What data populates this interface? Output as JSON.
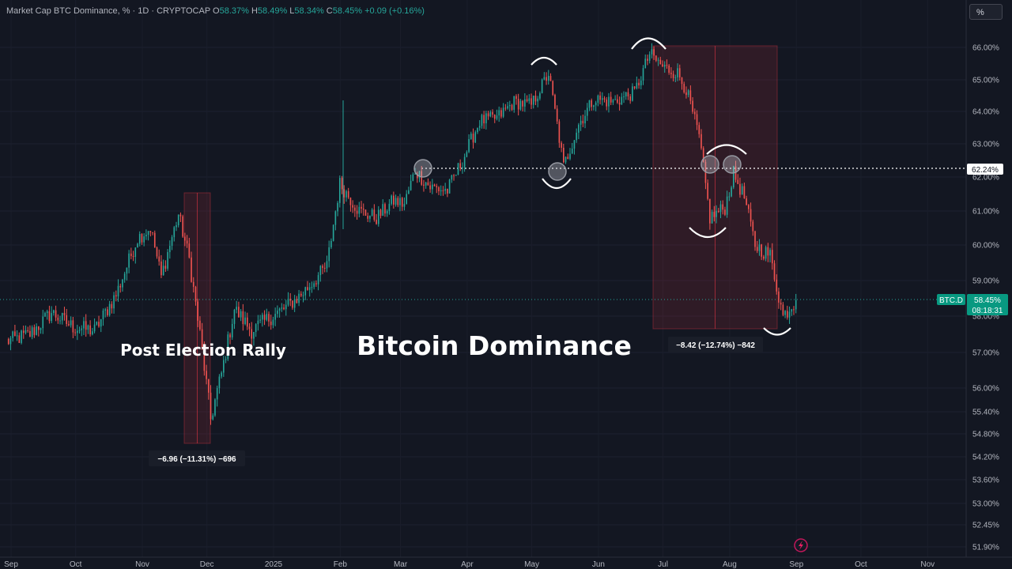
{
  "header": {
    "title": "Market Cap BTC Dominance, % · 1D · CRYPTOCAP",
    "o_label": "O",
    "o_value": "58.37%",
    "h_label": "H",
    "h_value": "58.49%",
    "l_label": "L",
    "l_value": "58.34%",
    "c_label": "C",
    "c_value": "58.45%",
    "change": "+0.09 (+0.16%)"
  },
  "scale_button": "%",
  "colors": {
    "up": "#26a69a",
    "down": "#ef5350",
    "bg": "#131722",
    "accent": "#089981"
  },
  "price_tag": {
    "symbol": "BTC.D",
    "value": "58.45%",
    "timer": "08:18:31"
  },
  "level_tag": "62.24%",
  "annotations": {
    "main_title": "Bitcoin Dominance",
    "left_title": "Post Election Rally",
    "left_measure": "−6.96 (−11.31%) −696",
    "right_measure": "−8.42 (−12.74%) −842"
  },
  "chart_data": {
    "type": "candlestick",
    "title": "Bitcoin Dominance",
    "y_ticks": [
      "66.00%",
      "65.00%",
      "64.00%",
      "63.00%",
      "62.00%",
      "61.00%",
      "60.00%",
      "59.00%",
      "58.00%",
      "57.00%",
      "56.00%",
      "55.40%",
      "54.80%",
      "54.20%",
      "53.60%",
      "53.00%",
      "52.45%",
      "51.90%"
    ],
    "x_ticks": [
      "Sep",
      "Oct",
      "Nov",
      "Dec",
      "2025",
      "Feb",
      "Mar",
      "Apr",
      "May",
      "Jun",
      "Jul",
      "Aug",
      "Sep",
      "Oct",
      "Nov"
    ],
    "horizontal_level": 62.24,
    "last_close": 58.45,
    "path_points": [
      [
        "2024-09-01",
        57.3
      ],
      [
        "2024-09-12",
        57.5
      ],
      [
        "2024-09-22",
        58.1
      ],
      [
        "2024-10-02",
        57.7
      ],
      [
        "2024-10-12",
        57.6
      ],
      [
        "2024-10-22",
        58.6
      ],
      [
        "2024-11-01",
        60.2
      ],
      [
        "2024-11-07",
        60.5
      ],
      [
        "2024-11-12",
        59.1
      ],
      [
        "2024-11-20",
        60.9
      ],
      [
        "2024-11-25",
        59.6
      ],
      [
        "2024-11-30",
        57.5
      ],
      [
        "2024-12-05",
        55.2
      ],
      [
        "2024-12-10",
        56.4
      ],
      [
        "2024-12-16",
        58.2
      ],
      [
        "2024-12-24",
        57.6
      ],
      [
        "2024-12-31",
        57.9
      ],
      [
        "2025-01-08",
        58.2
      ],
      [
        "2025-01-16",
        58.6
      ],
      [
        "2025-01-28",
        59.4
      ],
      [
        "2025-02-03",
        61.8
      ],
      [
        "2025-02-12",
        61.0
      ],
      [
        "2025-02-20",
        60.8
      ],
      [
        "2025-02-28",
        61.3
      ],
      [
        "2025-03-05",
        61.2
      ],
      [
        "2025-03-10",
        62.2
      ],
      [
        "2025-03-17",
        61.7
      ],
      [
        "2025-03-25",
        61.6
      ],
      [
        "2025-04-01",
        62.5
      ],
      [
        "2025-04-09",
        63.7
      ],
      [
        "2025-04-17",
        63.8
      ],
      [
        "2025-04-25",
        64.3
      ],
      [
        "2025-05-03",
        64.2
      ],
      [
        "2025-05-11",
        65.2
      ],
      [
        "2025-05-15",
        63.6
      ],
      [
        "2025-05-18",
        62.3
      ],
      [
        "2025-05-25",
        63.6
      ],
      [
        "2025-06-01",
        64.4
      ],
      [
        "2025-06-10",
        64.3
      ],
      [
        "2025-06-20",
        64.6
      ],
      [
        "2025-06-27",
        65.8
      ],
      [
        "2025-07-03",
        65.4
      ],
      [
        "2025-07-10",
        65.2
      ],
      [
        "2025-07-14",
        64.7
      ],
      [
        "2025-07-20",
        63.2
      ],
      [
        "2025-07-25",
        60.8
      ],
      [
        "2025-08-01",
        61.1
      ],
      [
        "2025-08-05",
        62.1
      ],
      [
        "2025-08-10",
        61.4
      ],
      [
        "2025-08-15",
        60.0
      ],
      [
        "2025-08-22",
        59.7
      ],
      [
        "2025-08-28",
        58.0
      ],
      [
        "2025-09-03",
        58.45
      ]
    ],
    "measurements": [
      {
        "from": "2024-11-25",
        "to": "2024-12-05",
        "change": "−6.96 (−11.31%) −696"
      },
      {
        "from": "2025-06-27",
        "to": "2025-08-28",
        "change": "−8.42 (−12.74%) −842"
      }
    ]
  }
}
